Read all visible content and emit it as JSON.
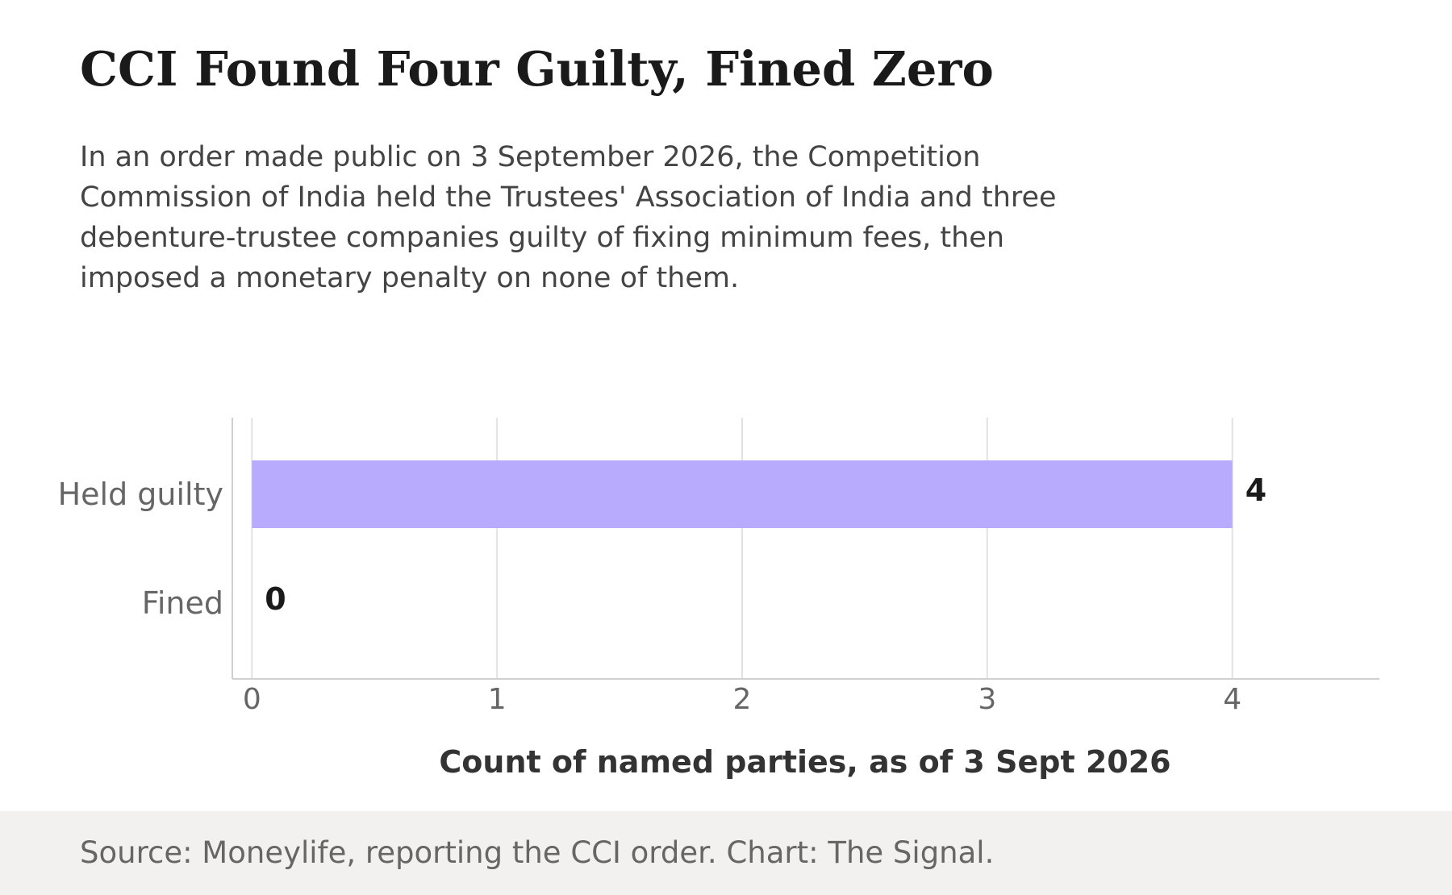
{
  "header": {
    "title": "CCI Found Four Guilty, Fined Zero",
    "subtitle": "In an order made public on 3 September 2026, the Competition Commission of India held the Trustees' Association of India and three debenture-trustee companies guilty of fixing minimum fees, then imposed a monetary penalty on none of them."
  },
  "chart_data": {
    "type": "bar",
    "orientation": "horizontal",
    "categories": [
      "Held guilty",
      "Fined"
    ],
    "values": [
      4,
      0
    ],
    "data_labels": [
      "4",
      "0"
    ],
    "xlabel": "Count of named parties, as of 3 Sept 2026",
    "ylabel": "",
    "xticks": [
      "0",
      "1",
      "2",
      "3",
      "4"
    ],
    "xlim": [
      -0.08,
      4.6
    ],
    "grid": "vertical",
    "bar_color": "#b8aafc"
  },
  "footer": {
    "source": "Source: Moneylife, reporting the CCI order. Chart: The Signal."
  }
}
